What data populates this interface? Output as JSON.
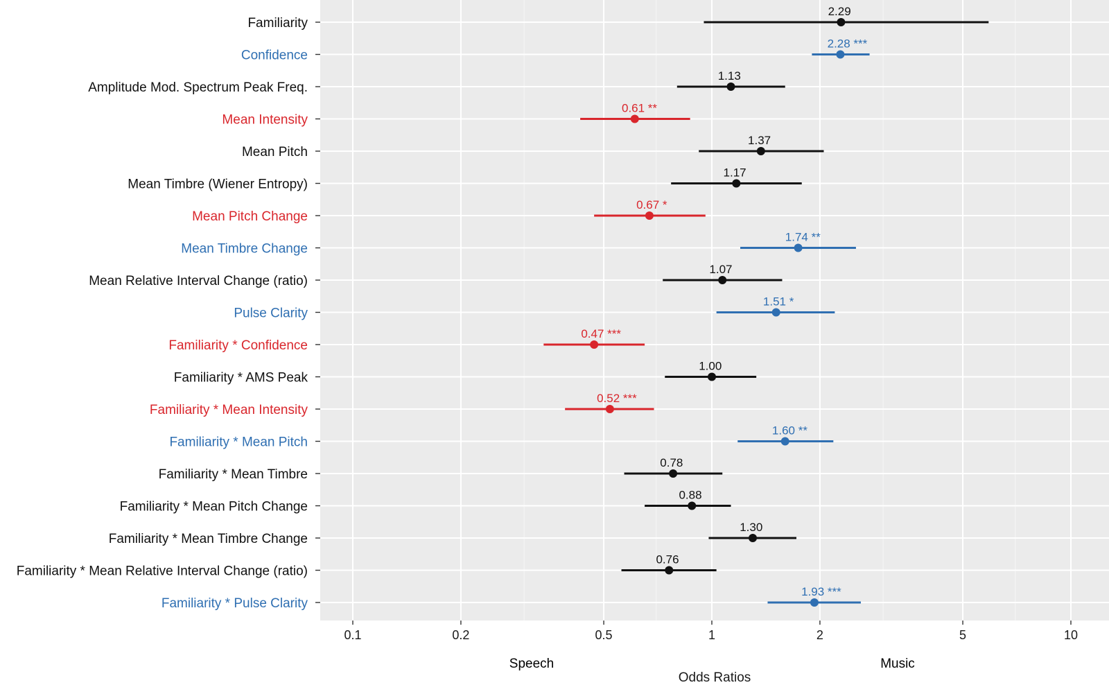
{
  "colors": {
    "black": "#111111",
    "red": "#d9262c",
    "blue": "#2f6fb2",
    "panel": "#ebebeb",
    "grid": "#ffffff"
  },
  "chart_data": {
    "type": "forest",
    "xscale": "log",
    "xlim": [
      0.08,
      11.5
    ],
    "xticks": [
      0.1,
      0.2,
      0.5,
      1,
      2,
      5,
      10
    ],
    "xtick_labels": [
      "0.1",
      "0.2",
      "0.5",
      "1",
      "2",
      "5",
      "10"
    ],
    "minor_xticks": [
      0.3,
      0.7,
      3,
      7
    ],
    "xlabel": "Odds Ratios",
    "direction_labels": {
      "left": "Speech",
      "right": "Music"
    },
    "rows": [
      {
        "label": "Familiarity",
        "or": 2.29,
        "lo": 0.95,
        "hi": 5.9,
        "text": "2.29",
        "color": "black"
      },
      {
        "label": "Confidence",
        "or": 2.28,
        "lo": 1.9,
        "hi": 2.75,
        "text": "2.28 ***",
        "color": "blue"
      },
      {
        "label": "Amplitude Mod. Spectrum Peak Freq.",
        "or": 1.13,
        "lo": 0.8,
        "hi": 1.6,
        "text": "1.13",
        "color": "black"
      },
      {
        "label": "Mean Intensity",
        "or": 0.61,
        "lo": 0.43,
        "hi": 0.87,
        "text": "0.61 **",
        "color": "red"
      },
      {
        "label": "Mean Pitch",
        "or": 1.37,
        "lo": 0.92,
        "hi": 2.05,
        "text": "1.37",
        "color": "black"
      },
      {
        "label": "Mean Timbre (Wiener Entropy)",
        "or": 1.17,
        "lo": 0.77,
        "hi": 1.78,
        "text": "1.17",
        "color": "black"
      },
      {
        "label": "Mean Pitch Change",
        "or": 0.67,
        "lo": 0.47,
        "hi": 0.96,
        "text": "0.67 *",
        "color": "red"
      },
      {
        "label": "Mean Timbre Change",
        "or": 1.74,
        "lo": 1.2,
        "hi": 2.52,
        "text": "1.74 **",
        "color": "blue"
      },
      {
        "label": "Mean Relative Interval Change (ratio)",
        "or": 1.07,
        "lo": 0.73,
        "hi": 1.57,
        "text": "1.07",
        "color": "black"
      },
      {
        "label": "Pulse Clarity",
        "or": 1.51,
        "lo": 1.03,
        "hi": 2.2,
        "text": "1.51 *",
        "color": "blue"
      },
      {
        "label": "Familiarity * Confidence",
        "or": 0.47,
        "lo": 0.34,
        "hi": 0.65,
        "text": "0.47 ***",
        "color": "red"
      },
      {
        "label": "Familiarity * AMS Peak",
        "or": 1.0,
        "lo": 0.74,
        "hi": 1.33,
        "text": "1.00",
        "color": "black"
      },
      {
        "label": "Familiarity * Mean Intensity",
        "or": 0.52,
        "lo": 0.39,
        "hi": 0.69,
        "text": "0.52 ***",
        "color": "red"
      },
      {
        "label": "Familiarity * Mean Pitch",
        "or": 1.6,
        "lo": 1.18,
        "hi": 2.18,
        "text": "1.60 **",
        "color": "blue"
      },
      {
        "label": "Familiarity * Mean Timbre",
        "or": 0.78,
        "lo": 0.57,
        "hi": 1.07,
        "text": "0.78",
        "color": "black"
      },
      {
        "label": "Familiarity * Mean Pitch Change",
        "or": 0.88,
        "lo": 0.65,
        "hi": 1.13,
        "text": "0.88",
        "color": "black"
      },
      {
        "label": "Familiarity * Mean Timbre Change",
        "or": 1.3,
        "lo": 0.98,
        "hi": 1.72,
        "text": "1.30",
        "color": "black"
      },
      {
        "label": "Familiarity * Mean Relative Interval Change (ratio)",
        "or": 0.76,
        "lo": 0.56,
        "hi": 1.03,
        "text": "0.76",
        "color": "black"
      },
      {
        "label": "Familiarity * Pulse Clarity",
        "or": 1.93,
        "lo": 1.43,
        "hi": 2.6,
        "text": "1.93 ***",
        "color": "blue"
      }
    ]
  }
}
